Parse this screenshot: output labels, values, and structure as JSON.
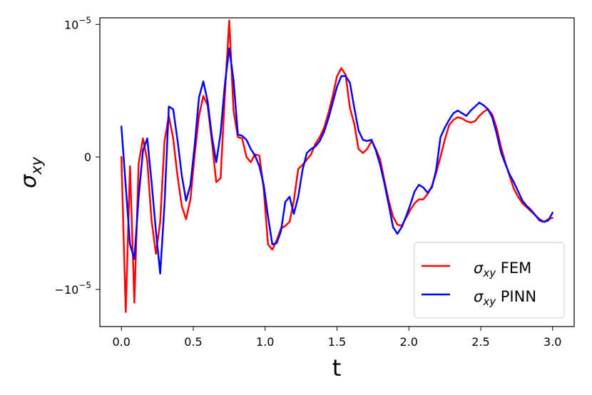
{
  "chart_data": {
    "type": "line",
    "title": "",
    "xlabel": "t",
    "ylabel_main": "σ",
    "ylabel_sub": "xy",
    "xlim": [
      -0.15,
      3.15
    ],
    "ylim": [
      -1.28,
      1.05
    ],
    "x_ticks": [
      {
        "value": 0.0,
        "label": "0.0"
      },
      {
        "value": 0.5,
        "label": "0.5"
      },
      {
        "value": 1.0,
        "label": "1.0"
      },
      {
        "value": 1.5,
        "label": "1.5"
      },
      {
        "value": 2.0,
        "label": "2.0"
      },
      {
        "value": 2.5,
        "label": "2.5"
      },
      {
        "value": 3.0,
        "label": "3.0"
      }
    ],
    "y_ticks": [
      {
        "value": 1,
        "base": "10",
        "exp": "−5"
      },
      {
        "value": 0,
        "base": "0",
        "exp": ""
      },
      {
        "value": -1,
        "base": "−10",
        "exp": "−5"
      }
    ],
    "y_scale": "symlog (linthresh 1e-5)",
    "grid": false,
    "legend_position": "bottom-right",
    "series": [
      {
        "name": "FEM",
        "legend_main": "σ",
        "legend_sub": "xy",
        "legend_text": " FEM",
        "color": "#ff0000",
        "x": [
          0.0,
          0.03,
          0.06,
          0.09,
          0.12,
          0.15,
          0.18,
          0.21,
          0.24,
          0.27,
          0.3,
          0.33,
          0.36,
          0.39,
          0.42,
          0.45,
          0.48,
          0.51,
          0.54,
          0.57,
          0.6,
          0.63,
          0.66,
          0.69,
          0.72,
          0.75,
          0.78,
          0.81,
          0.84,
          0.87,
          0.9,
          0.93,
          0.96,
          0.99,
          1.02,
          1.05,
          1.08,
          1.11,
          1.14,
          1.17,
          1.2,
          1.23,
          1.26,
          1.29,
          1.32,
          1.35,
          1.38,
          1.41,
          1.44,
          1.47,
          1.5,
          1.53,
          1.56,
          1.59,
          1.62,
          1.65,
          1.68,
          1.71,
          1.74,
          1.77,
          1.8,
          1.83,
          1.86,
          1.89,
          1.92,
          1.95,
          1.98,
          2.01,
          2.04,
          2.07,
          2.1,
          2.13,
          2.16,
          2.19,
          2.22,
          2.25,
          2.28,
          2.31,
          2.34,
          2.37,
          2.4,
          2.43,
          2.46,
          2.49,
          2.52,
          2.55,
          2.58,
          2.61,
          2.64,
          2.67,
          2.7,
          2.73,
          2.76,
          2.79,
          2.82,
          2.85,
          2.88,
          2.91,
          2.94,
          2.97,
          3.0
        ],
        "values": [
          0.0,
          -1.17,
          -0.07,
          -1.1,
          -0.05,
          0.14,
          -0.03,
          -0.48,
          -0.73,
          -0.49,
          0.12,
          0.31,
          0.14,
          -0.14,
          -0.37,
          -0.47,
          -0.32,
          0.02,
          0.31,
          0.46,
          0.39,
          0.11,
          -0.19,
          -0.16,
          0.47,
          1.03,
          0.35,
          0.15,
          0.14,
          0.0,
          -0.04,
          0.02,
          0.01,
          -0.24,
          -0.66,
          -0.7,
          -0.63,
          -0.54,
          -0.52,
          -0.49,
          -0.33,
          -0.09,
          -0.06,
          -0.02,
          0.02,
          0.1,
          0.15,
          0.22,
          0.33,
          0.46,
          0.61,
          0.67,
          0.62,
          0.37,
          0.25,
          0.06,
          0.03,
          0.06,
          0.12,
          0.06,
          -0.02,
          -0.18,
          -0.33,
          -0.45,
          -0.51,
          -0.52,
          -0.46,
          -0.4,
          -0.35,
          -0.32,
          -0.32,
          -0.28,
          -0.22,
          -0.12,
          0.0,
          0.13,
          0.24,
          0.28,
          0.3,
          0.29,
          0.27,
          0.26,
          0.27,
          0.31,
          0.34,
          0.36,
          0.32,
          0.22,
          0.08,
          -0.04,
          -0.14,
          -0.24,
          -0.3,
          -0.35,
          -0.38,
          -0.41,
          -0.44,
          -0.47,
          -0.49,
          -0.47,
          -0.46
        ]
      },
      {
        "name": "PINN",
        "legend_main": "σ",
        "legend_sub": "xy",
        "legend_text": " PINN",
        "color": "#0000ff",
        "x": [
          0.0,
          0.03,
          0.06,
          0.09,
          0.12,
          0.15,
          0.18,
          0.21,
          0.24,
          0.27,
          0.3,
          0.33,
          0.36,
          0.39,
          0.42,
          0.45,
          0.48,
          0.51,
          0.54,
          0.57,
          0.6,
          0.63,
          0.66,
          0.69,
          0.72,
          0.75,
          0.78,
          0.81,
          0.84,
          0.87,
          0.9,
          0.93,
          0.96,
          0.99,
          1.02,
          1.05,
          1.08,
          1.11,
          1.14,
          1.17,
          1.2,
          1.23,
          1.26,
          1.29,
          1.32,
          1.35,
          1.38,
          1.41,
          1.44,
          1.47,
          1.5,
          1.53,
          1.56,
          1.59,
          1.62,
          1.65,
          1.68,
          1.71,
          1.74,
          1.77,
          1.8,
          1.83,
          1.86,
          1.89,
          1.92,
          1.95,
          1.98,
          2.01,
          2.04,
          2.07,
          2.1,
          2.13,
          2.16,
          2.19,
          2.22,
          2.25,
          2.28,
          2.31,
          2.34,
          2.37,
          2.4,
          2.43,
          2.46,
          2.49,
          2.52,
          2.55,
          2.58,
          2.61,
          2.64,
          2.67,
          2.7,
          2.73,
          2.76,
          2.79,
          2.82,
          2.85,
          2.88,
          2.91,
          2.94,
          2.97,
          3.0
        ],
        "values": [
          0.23,
          -0.22,
          -0.66,
          -0.77,
          -0.3,
          0.05,
          0.14,
          -0.19,
          -0.56,
          -0.88,
          -0.35,
          0.38,
          0.36,
          0.13,
          -0.14,
          -0.33,
          -0.21,
          0.09,
          0.45,
          0.57,
          0.42,
          0.15,
          -0.04,
          0.18,
          0.55,
          0.82,
          0.58,
          0.17,
          0.16,
          0.13,
          0.06,
          0.01,
          -0.07,
          -0.21,
          -0.45,
          -0.66,
          -0.65,
          -0.56,
          -0.34,
          -0.3,
          -0.43,
          -0.3,
          -0.1,
          0.03,
          0.06,
          0.08,
          0.12,
          0.19,
          0.29,
          0.41,
          0.53,
          0.61,
          0.61,
          0.56,
          0.37,
          0.2,
          0.13,
          0.12,
          0.13,
          0.05,
          -0.06,
          -0.2,
          -0.36,
          -0.53,
          -0.58,
          -0.53,
          -0.45,
          -0.36,
          -0.26,
          -0.21,
          -0.23,
          -0.27,
          -0.23,
          -0.1,
          0.15,
          0.22,
          0.28,
          0.33,
          0.35,
          0.33,
          0.31,
          0.35,
          0.38,
          0.41,
          0.39,
          0.36,
          0.3,
          0.18,
          0.04,
          -0.05,
          -0.13,
          -0.19,
          -0.26,
          -0.33,
          -0.37,
          -0.4,
          -0.44,
          -0.48,
          -0.49,
          -0.48,
          -0.42
        ]
      }
    ]
  }
}
